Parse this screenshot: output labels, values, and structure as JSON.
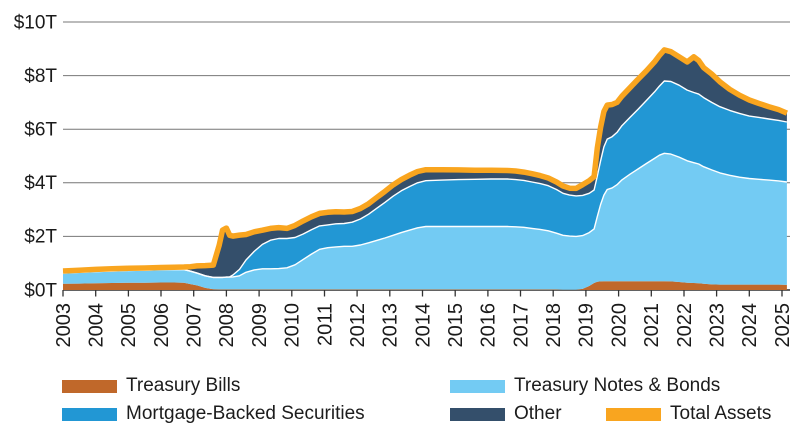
{
  "chart_data": {
    "type": "area",
    "stacked": true,
    "title": "",
    "unit": "trillions of US dollars",
    "ylim": [
      0,
      10
    ],
    "xlim": [
      2003,
      2025.15
    ],
    "grid": "horizontal",
    "legend_position": "bottom",
    "y_tick_labels": [
      "$0T",
      "$2T",
      "$4T",
      "$6T",
      "$8T",
      "$10T"
    ],
    "y_tick_values": [
      0,
      2,
      4,
      6,
      8,
      10
    ],
    "x_tick_labels": [
      "2003",
      "2004",
      "2005",
      "2006",
      "2007",
      "2008",
      "2009",
      "2010",
      "2011",
      "2012",
      "2013",
      "2014",
      "2015",
      "2016",
      "2017",
      "2018",
      "2019",
      "2020",
      "2021",
      "2022",
      "2023",
      "2024",
      "2025"
    ],
    "x": [
      2003.0,
      2003.5,
      2004.0,
      2004.5,
      2005.0,
      2005.5,
      2006.0,
      2006.4,
      2006.7,
      2006.9,
      2007.1,
      2007.35,
      2007.6,
      2007.78,
      2007.88,
      2008.0,
      2008.1,
      2008.2,
      2008.4,
      2008.6,
      2008.85,
      2009.1,
      2009.35,
      2009.6,
      2009.85,
      2010.1,
      2010.35,
      2010.6,
      2010.85,
      2011.1,
      2011.35,
      2011.6,
      2011.85,
      2012.1,
      2012.35,
      2012.6,
      2012.85,
      2013.1,
      2013.35,
      2013.6,
      2013.85,
      2014.1,
      2014.6,
      2015.1,
      2015.6,
      2016.1,
      2016.6,
      2016.85,
      2017.1,
      2017.35,
      2017.6,
      2017.85,
      2018.1,
      2018.3,
      2018.5,
      2018.7,
      2018.9,
      2019.1,
      2019.25,
      2019.35,
      2019.45,
      2019.55,
      2019.65,
      2019.8,
      2019.95,
      2020.1,
      2020.35,
      2020.6,
      2020.85,
      2021.1,
      2021.25,
      2021.4,
      2021.6,
      2021.85,
      2022.1,
      2022.3,
      2022.45,
      2022.6,
      2022.85,
      2023.1,
      2023.4,
      2023.7,
      2024.0,
      2024.3,
      2024.6,
      2024.9,
      2025.15
    ],
    "series": [
      {
        "name": "Treasury Bills",
        "color": "#C0682A",
        "values": [
          0.23,
          0.24,
          0.25,
          0.26,
          0.27,
          0.27,
          0.28,
          0.28,
          0.27,
          0.22,
          0.17,
          0.08,
          0.03,
          0.02,
          0.02,
          0.02,
          0.02,
          0.02,
          0.02,
          0.02,
          0.02,
          0.02,
          0.02,
          0.02,
          0.02,
          0.02,
          0.02,
          0.02,
          0.02,
          0.02,
          0.02,
          0.02,
          0.02,
          0.02,
          0.02,
          0.02,
          0.02,
          0.02,
          0.02,
          0.02,
          0.02,
          0.02,
          0.02,
          0.02,
          0.02,
          0.02,
          0.02,
          0.02,
          0.02,
          0.02,
          0.02,
          0.02,
          0.02,
          0.01,
          0.01,
          0.01,
          0.04,
          0.15,
          0.26,
          0.31,
          0.32,
          0.33,
          0.33,
          0.33,
          0.33,
          0.33,
          0.33,
          0.33,
          0.33,
          0.33,
          0.33,
          0.33,
          0.32,
          0.3,
          0.27,
          0.26,
          0.25,
          0.23,
          0.21,
          0.2,
          0.2,
          0.2,
          0.2,
          0.2,
          0.2,
          0.2,
          0.19
        ]
      },
      {
        "name": "Treasury Notes & Bonds",
        "color": "#73CBF3",
        "values": [
          0.4,
          0.42,
          0.44,
          0.45,
          0.46,
          0.47,
          0.48,
          0.49,
          0.49,
          0.48,
          0.46,
          0.45,
          0.44,
          0.45,
          0.45,
          0.46,
          0.46,
          0.47,
          0.51,
          0.64,
          0.73,
          0.77,
          0.77,
          0.78,
          0.81,
          0.92,
          1.12,
          1.32,
          1.5,
          1.56,
          1.59,
          1.61,
          1.61,
          1.66,
          1.74,
          1.83,
          1.92,
          2.02,
          2.12,
          2.21,
          2.3,
          2.35,
          2.35,
          2.35,
          2.35,
          2.35,
          2.35,
          2.34,
          2.32,
          2.28,
          2.24,
          2.19,
          2.1,
          2.03,
          2.0,
          1.99,
          1.99,
          1.99,
          2.02,
          2.43,
          2.87,
          3.21,
          3.42,
          3.48,
          3.6,
          3.78,
          3.99,
          4.19,
          4.39,
          4.58,
          4.7,
          4.77,
          4.75,
          4.66,
          4.55,
          4.49,
          4.45,
          4.37,
          4.27,
          4.17,
          4.08,
          4.01,
          3.96,
          3.93,
          3.9,
          3.87,
          3.84
        ]
      },
      {
        "name": "Mortgage-Backed Securities",
        "color": "#2297D4",
        "values": [
          0,
          0,
          0,
          0,
          0,
          0,
          0,
          0,
          0,
          0,
          0,
          0,
          0,
          0,
          0,
          0,
          0.01,
          0.07,
          0.24,
          0.46,
          0.69,
          0.91,
          1.07,
          1.12,
          1.09,
          1.02,
          0.95,
          0.91,
          0.87,
          0.85,
          0.86,
          0.85,
          0.9,
          0.97,
          1.07,
          1.2,
          1.33,
          1.46,
          1.56,
          1.63,
          1.68,
          1.71,
          1.73,
          1.75,
          1.76,
          1.77,
          1.77,
          1.76,
          1.75,
          1.73,
          1.71,
          1.68,
          1.63,
          1.57,
          1.53,
          1.51,
          1.5,
          1.47,
          1.45,
          1.51,
          1.63,
          1.8,
          1.88,
          1.91,
          1.95,
          2.02,
          2.12,
          2.23,
          2.35,
          2.48,
          2.58,
          2.7,
          2.71,
          2.68,
          2.64,
          2.62,
          2.61,
          2.58,
          2.52,
          2.47,
          2.42,
          2.38,
          2.33,
          2.31,
          2.28,
          2.26,
          2.24
        ]
      },
      {
        "name": "Other",
        "color": "#344F6B",
        "values": [
          0.08,
          0.08,
          0.08,
          0.08,
          0.08,
          0.08,
          0.08,
          0.08,
          0.1,
          0.17,
          0.27,
          0.38,
          0.46,
          1.2,
          1.76,
          1.83,
          1.55,
          1.45,
          1.28,
          0.95,
          0.73,
          0.53,
          0.44,
          0.41,
          0.38,
          0.45,
          0.49,
          0.48,
          0.47,
          0.47,
          0.45,
          0.43,
          0.4,
          0.39,
          0.39,
          0.4,
          0.41,
          0.42,
          0.42,
          0.42,
          0.42,
          0.41,
          0.39,
          0.36,
          0.34,
          0.33,
          0.32,
          0.32,
          0.31,
          0.31,
          0.3,
          0.29,
          0.28,
          0.27,
          0.26,
          0.28,
          0.4,
          0.47,
          0.5,
          1.05,
          1.25,
          1.32,
          1.27,
          1.2,
          1.12,
          1.1,
          1.11,
          1.12,
          1.11,
          1.12,
          1.14,
          1.16,
          1.11,
          1.06,
          1.05,
          1.33,
          1.25,
          1.12,
          1.06,
          0.93,
          0.79,
          0.68,
          0.6,
          0.52,
          0.46,
          0.4,
          0.33
        ]
      }
    ],
    "total_line": {
      "name": "Total Assets",
      "color": "#F9A51F",
      "note": "sum of stacked series drawn as thick line on top of stack"
    }
  },
  "legend": {
    "items": [
      {
        "label": "Treasury Bills",
        "color": "#C0682A"
      },
      {
        "label": "Treasury Notes & Bonds",
        "color": "#73CBF3"
      },
      {
        "label": "Mortgage-Backed Securities",
        "color": "#2297D4"
      },
      {
        "label": "Other",
        "color": "#344F6B"
      },
      {
        "label": "Total Assets",
        "color": "#F9A51F"
      }
    ]
  },
  "style": {
    "gridline_color": "#777777",
    "axis_color": "#2e2e2e",
    "tick_color": "#333333",
    "label_color": "#1a1a1a",
    "boundary_stroke": "#ffffff",
    "background": "#ffffff"
  }
}
